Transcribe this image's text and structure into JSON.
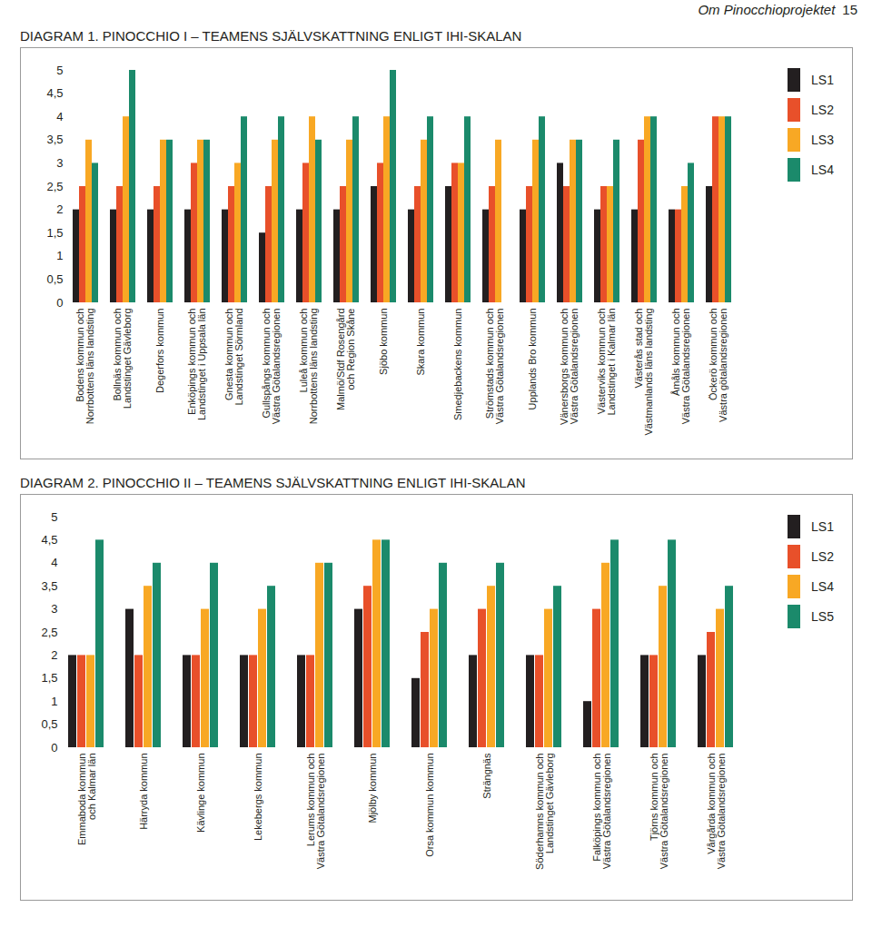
{
  "page_header": "Om Pinocchioprojektet",
  "page_number": 15,
  "chart_data": [
    {
      "type": "bar",
      "title": "DIAGRAM 1. PINOCCHIO I – TEAMENS SJÄLVSKATTNING ENLIGT IHI-SKALAN",
      "categories": [
        "Bodens kommun och\nNorrbottens läns landsting",
        "Bollnäs kommun och\nLandstinget Gävleborg",
        "Degerfors kommun",
        "Enköpings kommun och\nLandstinget i Uppsala län",
        "Gnesta kommun och\nLandstinget Sörmland",
        "Gullspångs kommun och\nVästra Götalandsregionen",
        "Luleå kommun och\nNorrbottens läns landsting",
        "Malmö/Stdf Rosengård\noch Region Skåne",
        "Sjöbo kommun",
        "Skara kommun",
        "Smedjebackens kommun",
        "Strömstads kommun och\nVästra Götalandsregionen",
        "Upplands Bro kommun",
        "Vänersborgs kommun och\nVästra Götalandsregionen",
        "Västerviks kommun och\nLandstinget i Kalmar län",
        "Västerås stad och\nVästmanlands läns landsting",
        "Åmåls kommun och\nVästra Götalandsregionen",
        "Öckerö kommun och\nVästra götalandsregionen"
      ],
      "series": [
        {
          "name": "LS1",
          "color": "#231f20",
          "values": [
            2,
            2,
            2,
            2,
            2,
            1.5,
            2,
            2,
            2.5,
            2,
            2.5,
            2,
            2,
            3,
            2,
            2,
            2,
            2.5
          ]
        },
        {
          "name": "LS2",
          "color": "#e8502a",
          "values": [
            2.5,
            2.5,
            2.5,
            3,
            2.5,
            2.5,
            3,
            2.5,
            3,
            2.5,
            3,
            2.5,
            2.5,
            2.5,
            2.5,
            3.5,
            2,
            4
          ]
        },
        {
          "name": "LS3",
          "color": "#f8a824",
          "values": [
            3.5,
            4,
            3.5,
            3.5,
            3,
            3.5,
            4,
            3.5,
            4,
            3.5,
            3,
            3.5,
            3.5,
            3.5,
            2.5,
            4,
            2.5,
            4
          ]
        },
        {
          "name": "LS4",
          "color": "#1b8a6b",
          "values": [
            3,
            5,
            3.5,
            3.5,
            4,
            4,
            3.5,
            4,
            5,
            4,
            4,
            null,
            4,
            3.5,
            3.5,
            4,
            3,
            4
          ]
        }
      ],
      "ylim": [
        0,
        5
      ],
      "yticks": [
        0,
        {
          "value": 0.5,
          "label": "0,5"
        },
        1,
        {
          "value": 1.5,
          "label": "1,5"
        },
        2,
        {
          "value": 2.5,
          "label": "2,5"
        },
        3,
        {
          "value": 3.5,
          "label": "3,5"
        },
        4,
        {
          "value": 4.5,
          "label": "4,5"
        },
        5
      ],
      "grid": false,
      "legend": "right"
    },
    {
      "type": "bar",
      "title": "DIAGRAM 2. PINOCCHIO II – TEAMENS SJÄLVSKATTNING ENLIGT IHI-SKALAN",
      "categories": [
        "Emmaboda kommun\noch Kalmar län",
        "Härryda kommun",
        "Kävlinge kommun",
        "Lekebergs kommun",
        "Lerums kommun och\nVästra Götalandsregionen",
        "Mjölby kommun",
        "Orsa kommun kommun",
        "Strängnäs",
        "Söderhamns kommun och\nLandstinget Gävleborg",
        "Falköpings kommun och\nVästra Götalandsregionen",
        "Tjörns kommun och\nVästra Götalandsregionen",
        "Vårgårda kommun och\nVästra Götalandsregionen"
      ],
      "series": [
        {
          "name": "LS1",
          "color": "#231f20",
          "values": [
            2,
            3,
            2,
            2,
            2,
            3,
            1.5,
            2,
            2,
            1,
            2,
            2
          ]
        },
        {
          "name": "LS2",
          "color": "#e8502a",
          "values": [
            2,
            2,
            2,
            2,
            2,
            3.5,
            2.5,
            3,
            2,
            3,
            2,
            2.5
          ]
        },
        {
          "name": "LS4",
          "color": "#f8a824",
          "values": [
            2,
            3.5,
            3,
            3,
            4,
            4.5,
            3,
            3.5,
            3,
            4,
            3.5,
            3
          ]
        },
        {
          "name": "LS5",
          "color": "#1b8a6b",
          "values": [
            4.5,
            4,
            4,
            3.5,
            4,
            4.5,
            4,
            4,
            3.5,
            4.5,
            4.5,
            3.5
          ]
        }
      ],
      "ylim": [
        0,
        5
      ],
      "yticks": [
        0,
        {
          "value": 0.5,
          "label": "0,5"
        },
        1,
        {
          "value": 1.5,
          "label": "1,5"
        },
        2,
        {
          "value": 2.5,
          "label": "2,5"
        },
        3,
        {
          "value": 3.5,
          "label": "3,5"
        },
        4,
        {
          "value": 4.5,
          "label": "4,5"
        },
        5
      ],
      "grid": false,
      "legend": "right"
    }
  ]
}
